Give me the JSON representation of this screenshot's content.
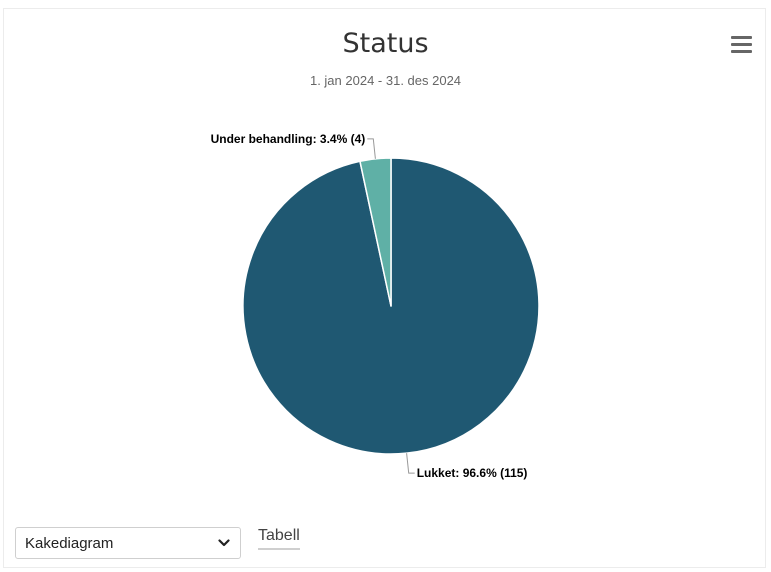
{
  "header": {
    "title": "Status",
    "subtitle": "1. jan 2024 - 31. des 2024"
  },
  "menu": {
    "icon": "hamburger-menu-icon"
  },
  "controls": {
    "chart_type_selected": "Kakediagram",
    "table_link": "Tabell"
  },
  "colors": {
    "primary_slice": "#1f5872",
    "secondary_slice": "#5fb0a6",
    "connector": "#999999"
  },
  "chart_data": {
    "type": "pie",
    "title": "Status",
    "subtitle": "1. jan 2024 - 31. des 2024",
    "slices": [
      {
        "name": "Lukket",
        "value": 115,
        "percent": 96.6,
        "label": "Lukket: 96.6% (115)"
      },
      {
        "name": "Under behandling",
        "value": 4,
        "percent": 3.4,
        "label": "Under behandling: 3.4% (4)"
      }
    ]
  }
}
